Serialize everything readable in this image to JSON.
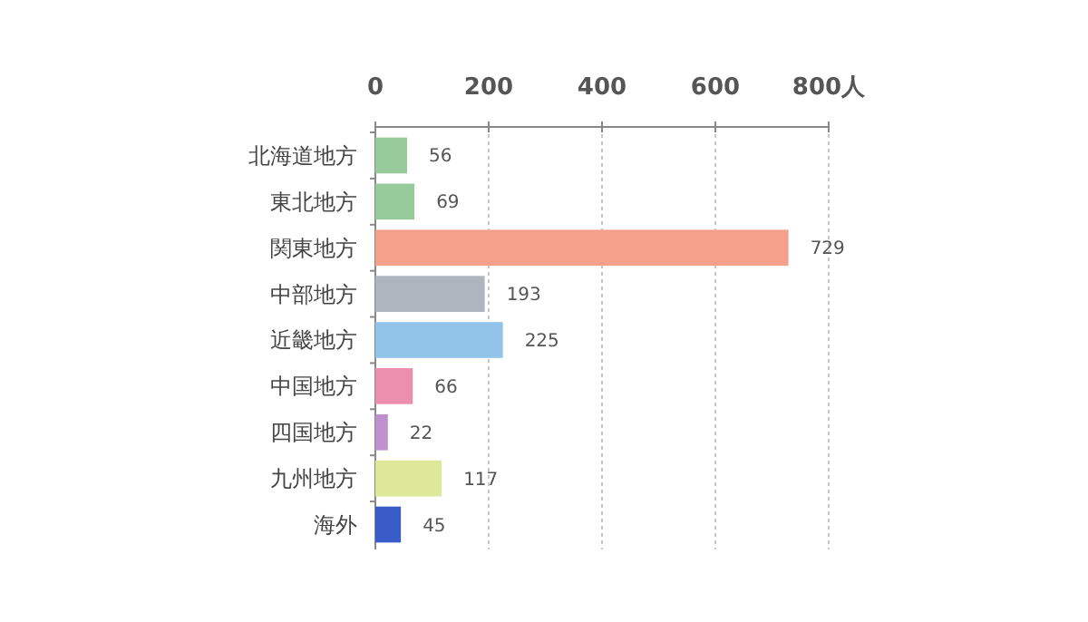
{
  "chart_data": {
    "type": "bar",
    "orientation": "horizontal",
    "categories": [
      "北海道地方",
      "東北地方",
      "関東地方",
      "中部地方",
      "近畿地方",
      "中国地方",
      "四国地方",
      "九州地方",
      "海外"
    ],
    "values": [
      56,
      69,
      729,
      193,
      225,
      66,
      22,
      117,
      45
    ],
    "colors": [
      "#97cb9b",
      "#97cb9b",
      "#f4a08a",
      "#adb6be",
      "#92c4ea",
      "#ec8fae",
      "#c08fce",
      "#dde899",
      "#3a5cc8"
    ],
    "xlim": [
      0,
      800
    ],
    "xticks": [
      0,
      200,
      400,
      600,
      {
        "value": 800,
        "label": "800人"
      }
    ],
    "grid": "x",
    "data_labels": true
  }
}
